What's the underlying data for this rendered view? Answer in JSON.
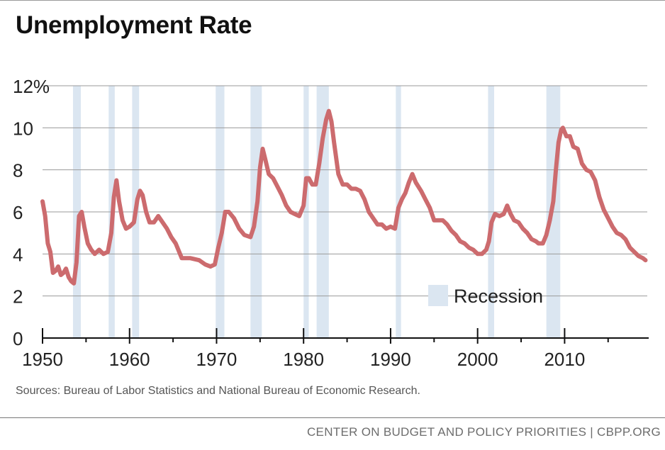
{
  "header": {
    "title": "Unemployment Rate"
  },
  "source_text": "Sources: Bureau of Labor Statistics and National Bureau of Economic Research.",
  "footer": {
    "org": "CENTER ON BUDGET AND POLICY PRIORITIES | CBPP.ORG"
  },
  "colors": {
    "line": "#cc6b6e",
    "recession": "#dbe6f1",
    "grid": "#9a9a9a",
    "axis": "#111111"
  },
  "chart_data": {
    "type": "line",
    "title": "Unemployment Rate",
    "xlabel": "",
    "ylabel": "",
    "xlim": [
      1950,
      2019.5
    ],
    "ylim": [
      0,
      12
    ],
    "x_ticks": [
      1950,
      1960,
      1970,
      1980,
      1990,
      2000,
      2010
    ],
    "y_ticks": [
      {
        "value": 0,
        "label": "0"
      },
      {
        "value": 2,
        "label": "2"
      },
      {
        "value": 4,
        "label": "4"
      },
      {
        "value": 6,
        "label": "6"
      },
      {
        "value": 8,
        "label": "8"
      },
      {
        "value": 10,
        "label": "10"
      },
      {
        "value": 12,
        "label": "12%"
      }
    ],
    "legend": {
      "label": "Recession",
      "placement": "bottom-right"
    },
    "recessions": [
      [
        1953.5,
        1954.4
      ],
      [
        1957.6,
        1958.3
      ],
      [
        1960.3,
        1961.1
      ],
      [
        1969.9,
        1970.9
      ],
      [
        1973.9,
        1975.2
      ],
      [
        1980.0,
        1980.6
      ],
      [
        1981.5,
        1982.9
      ],
      [
        1990.6,
        1991.2
      ],
      [
        2001.2,
        2001.9
      ],
      [
        2007.9,
        2009.5
      ]
    ],
    "series": [
      {
        "name": "Unemployment Rate",
        "x": [
          1950.0,
          1950.3,
          1950.6,
          1950.9,
          1951.2,
          1951.5,
          1951.8,
          1952.1,
          1952.4,
          1952.7,
          1953.0,
          1953.3,
          1953.6,
          1953.9,
          1954.2,
          1954.5,
          1954.8,
          1955.2,
          1955.6,
          1956.0,
          1956.5,
          1957.0,
          1957.5,
          1957.9,
          1958.2,
          1958.5,
          1958.8,
          1959.2,
          1959.6,
          1960.0,
          1960.5,
          1960.9,
          1961.2,
          1961.5,
          1961.9,
          1962.3,
          1962.8,
          1963.3,
          1963.8,
          1964.3,
          1964.8,
          1965.3,
          1966.0,
          1967.0,
          1968.0,
          1968.7,
          1969.3,
          1969.8,
          1970.2,
          1970.6,
          1971.0,
          1971.4,
          1972.0,
          1972.6,
          1973.2,
          1973.9,
          1974.3,
          1974.7,
          1975.0,
          1975.3,
          1975.6,
          1976.0,
          1976.5,
          1977.0,
          1977.5,
          1978.0,
          1978.5,
          1979.0,
          1979.5,
          1980.0,
          1980.3,
          1980.6,
          1981.0,
          1981.4,
          1981.8,
          1982.2,
          1982.6,
          1982.9,
          1983.2,
          1983.5,
          1984.0,
          1984.5,
          1985.0,
          1985.5,
          1986.0,
          1986.5,
          1987.0,
          1987.5,
          1988.0,
          1988.5,
          1989.0,
          1989.5,
          1990.0,
          1990.5,
          1990.9,
          1991.3,
          1991.7,
          1992.1,
          1992.5,
          1992.9,
          1993.5,
          1994.0,
          1994.5,
          1995.0,
          1995.5,
          1996.0,
          1996.5,
          1997.0,
          1997.5,
          1998.0,
          1998.5,
          1999.0,
          1999.5,
          2000.0,
          2000.5,
          2001.0,
          2001.3,
          2001.6,
          2002.0,
          2002.5,
          2003.0,
          2003.4,
          2003.8,
          2004.2,
          2004.7,
          2005.2,
          2005.7,
          2006.2,
          2006.7,
          2007.0,
          2007.5,
          2007.9,
          2008.3,
          2008.7,
          2009.0,
          2009.3,
          2009.6,
          2009.8,
          2010.2,
          2010.6,
          2011.0,
          2011.5,
          2012.0,
          2012.5,
          2013.0,
          2013.5,
          2014.0,
          2014.5,
          2015.0,
          2015.5,
          2016.0,
          2016.5,
          2017.0,
          2017.5,
          2018.0,
          2018.5,
          2019.0,
          2019.3
        ],
        "values": [
          6.5,
          5.8,
          4.5,
          4.1,
          3.1,
          3.2,
          3.4,
          3.0,
          3.1,
          3.3,
          2.9,
          2.7,
          2.6,
          3.6,
          5.8,
          6.0,
          5.3,
          4.5,
          4.2,
          4.0,
          4.2,
          4.0,
          4.1,
          5.0,
          6.7,
          7.5,
          6.5,
          5.6,
          5.2,
          5.3,
          5.5,
          6.6,
          7.0,
          6.8,
          6.0,
          5.5,
          5.5,
          5.8,
          5.5,
          5.2,
          4.8,
          4.5,
          3.8,
          3.8,
          3.7,
          3.5,
          3.4,
          3.5,
          4.3,
          5.0,
          6.0,
          6.0,
          5.7,
          5.2,
          4.9,
          4.8,
          5.3,
          6.5,
          8.1,
          9.0,
          8.5,
          7.8,
          7.6,
          7.2,
          6.8,
          6.3,
          6.0,
          5.9,
          5.8,
          6.3,
          7.6,
          7.6,
          7.3,
          7.3,
          8.3,
          9.5,
          10.4,
          10.8,
          10.3,
          9.3,
          7.8,
          7.3,
          7.3,
          7.1,
          7.1,
          7.0,
          6.6,
          6.0,
          5.7,
          5.4,
          5.4,
          5.2,
          5.3,
          5.2,
          6.2,
          6.6,
          6.9,
          7.4,
          7.8,
          7.4,
          7.0,
          6.6,
          6.2,
          5.6,
          5.6,
          5.6,
          5.4,
          5.1,
          4.9,
          4.6,
          4.5,
          4.3,
          4.2,
          4.0,
          4.0,
          4.2,
          4.6,
          5.5,
          5.9,
          5.8,
          5.9,
          6.3,
          5.9,
          5.6,
          5.5,
          5.2,
          5.0,
          4.7,
          4.6,
          4.5,
          4.5,
          4.9,
          5.6,
          6.5,
          8.0,
          9.3,
          9.9,
          10.0,
          9.6,
          9.6,
          9.1,
          9.0,
          8.3,
          8.0,
          7.9,
          7.5,
          6.7,
          6.1,
          5.7,
          5.3,
          5.0,
          4.9,
          4.7,
          4.3,
          4.1,
          3.9,
          3.8,
          3.7
        ]
      }
    ]
  }
}
